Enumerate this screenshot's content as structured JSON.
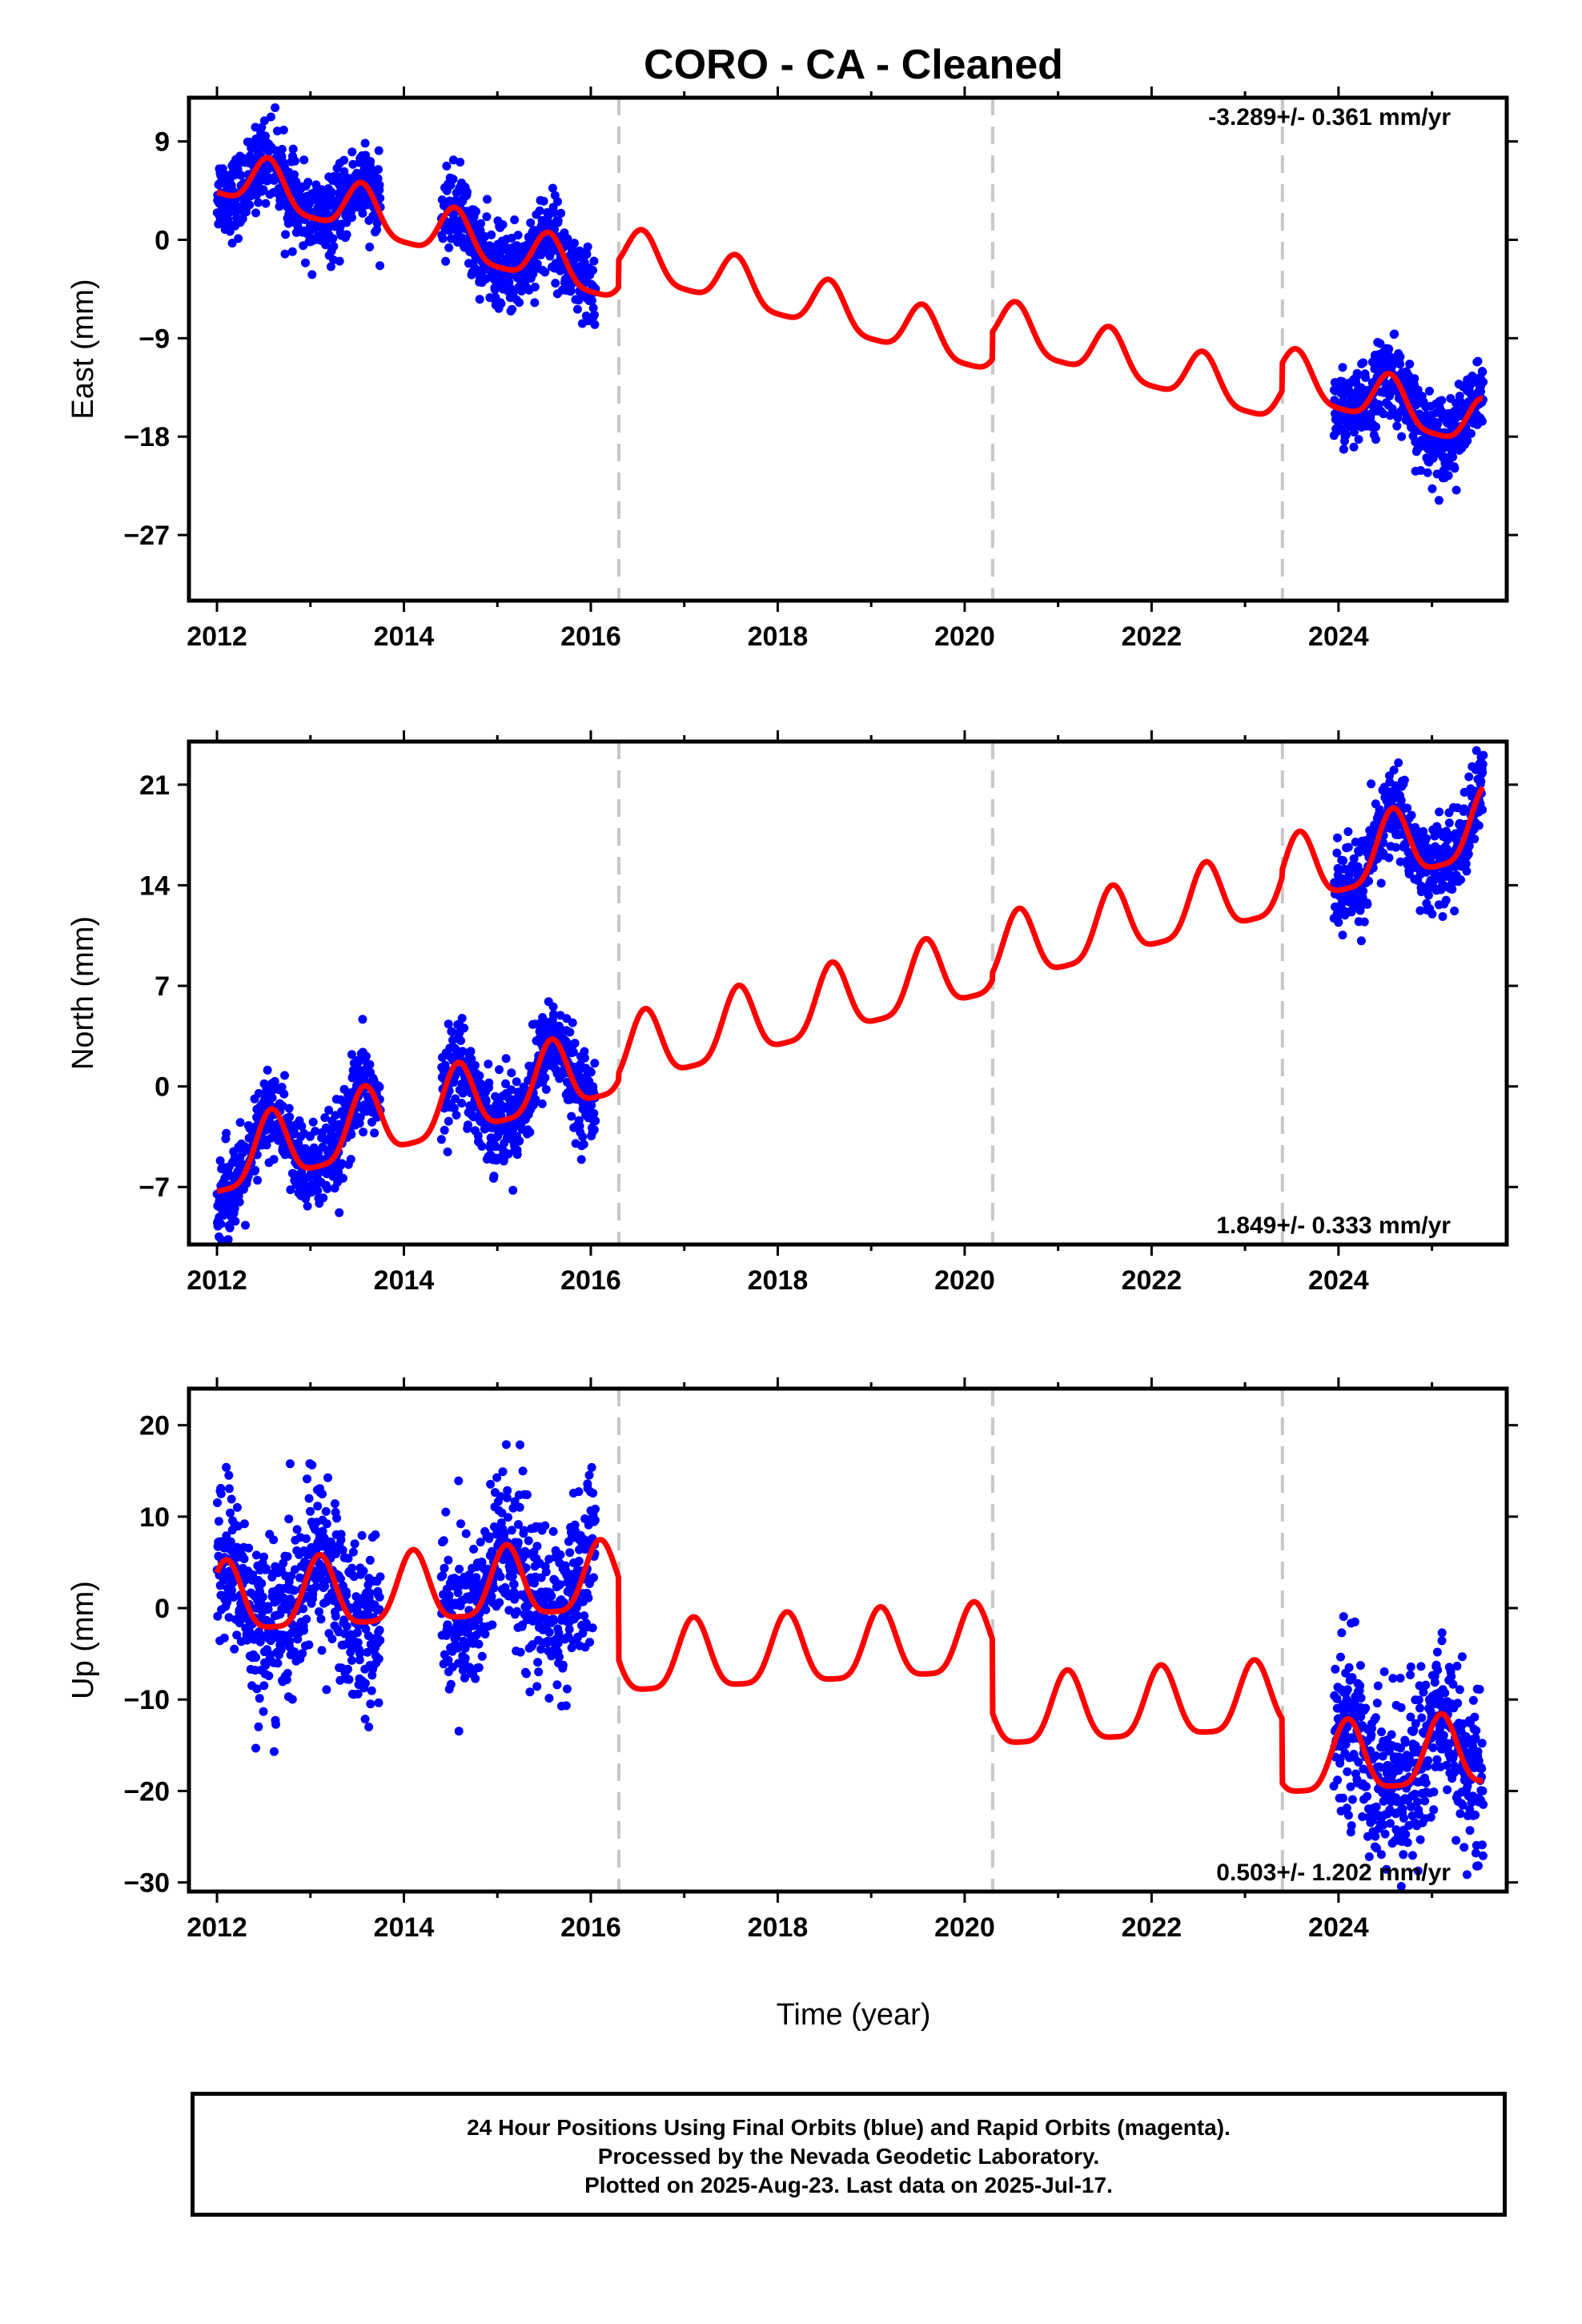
{
  "chart_data": {
    "title": "CORO  - CA - Cleaned",
    "xlabel": "Time (year)",
    "xlim": [
      2011.7,
      2025.8
    ],
    "x_ticks": [
      2012,
      2014,
      2016,
      2018,
      2020,
      2022,
      2024
    ],
    "x_tick_labels": [
      "2012",
      "2014",
      "2016",
      "2018",
      "2020",
      "2022",
      "2024"
    ],
    "vertical_dashed_lines": [
      2016.3,
      2020.3,
      2023.4
    ],
    "panels": [
      {
        "type": "scatter",
        "ylabel": "East (mm)",
        "ylim": [
          -33,
          13
        ],
        "y_ticks": [
          9,
          0,
          -9,
          -18,
          -27
        ],
        "y_tick_labels": [
          "9",
          "0",
          "−9",
          "−18",
          "−27"
        ],
        "rate_label": "-3.289+/- 0.361 mm/yr",
        "rate_position": "top-right",
        "model": {
          "trend_start": 6.0,
          "rate": -2.27,
          "amplitude": 2.2,
          "phase_peak": 0.55,
          "offsets": [
            {
              "x": 2016.3,
              "dy": 2.5
            },
            {
              "x": 2020.3,
              "dy": 2.5
            },
            {
              "x": 2023.4,
              "dy": 2.5
            }
          ]
        },
        "series": [
          {
            "segments": [
              [
                2012.0,
                2013.75
              ],
              [
                2014.4,
                2016.05
              ],
              [
                2023.95,
                2025.55
              ]
            ],
            "noise": 1.8,
            "color": "#0000ff"
          },
          {
            "model_line": true,
            "color": "#ff0000"
          }
        ]
      },
      {
        "type": "scatter",
        "ylabel": "North (mm)",
        "ylim": [
          -11,
          24
        ],
        "y_ticks": [
          21,
          14,
          7,
          0,
          -7
        ],
        "y_tick_labels": [
          "21",
          "14",
          "7",
          "0",
          "−7"
        ],
        "rate_label": "1.849+/- 0.333 mm/yr",
        "rate_position": "bottom-right",
        "model": {
          "trend_start": -5.5,
          "rate": 1.62,
          "amplitude": 2.4,
          "phase_peak": 0.58,
          "offsets": [
            {
              "x": 2016.3,
              "dy": 0.5
            },
            {
              "x": 2020.3,
              "dy": 0.5
            },
            {
              "x": 2023.4,
              "dy": 0.5
            }
          ]
        },
        "series": [
          {
            "segments": [
              [
                2012.0,
                2013.75
              ],
              [
                2014.4,
                2016.05
              ],
              [
                2023.95,
                2025.55
              ]
            ],
            "noise": 1.5,
            "color": "#0000ff"
          },
          {
            "model_line": true,
            "color": "#ff0000"
          }
        ]
      },
      {
        "type": "scatter",
        "ylabel": "Up (mm)",
        "ylim": [
          -31,
          24
        ],
        "y_ticks": [
          20,
          10,
          0,
          -10,
          -20,
          -30
        ],
        "y_tick_labels": [
          "20",
          "10",
          "0",
          "−10",
          "−20",
          "−30"
        ],
        "rate_label": "0.503+/- 1.202 mm/yr",
        "rate_position": "bottom-right",
        "model": {
          "trend_start": 0.5,
          "rate": 0.55,
          "amplitude": 3.8,
          "phase_peak": 0.1,
          "offsets": [
            {
              "x": 2016.3,
              "dy": -9.0
            },
            {
              "x": 2020.3,
              "dy": -8.0
            },
            {
              "x": 2023.4,
              "dy": -7.0
            }
          ]
        },
        "series": [
          {
            "segments": [
              [
                2012.0,
                2013.75
              ],
              [
                2014.4,
                2016.05
              ],
              [
                2023.95,
                2025.55
              ]
            ],
            "noise": 4.5,
            "color": "#0000ff"
          },
          {
            "model_line": true,
            "color": "#ff0000"
          }
        ]
      }
    ]
  },
  "footer": {
    "line1": "24 Hour Positions Using Final Orbits (blue) and Rapid Orbits (magenta).",
    "line2": "Processed by the Nevada Geodetic Laboratory.",
    "line3": "Plotted on 2025-Aug-23. Last data on 2025-Jul-17."
  }
}
